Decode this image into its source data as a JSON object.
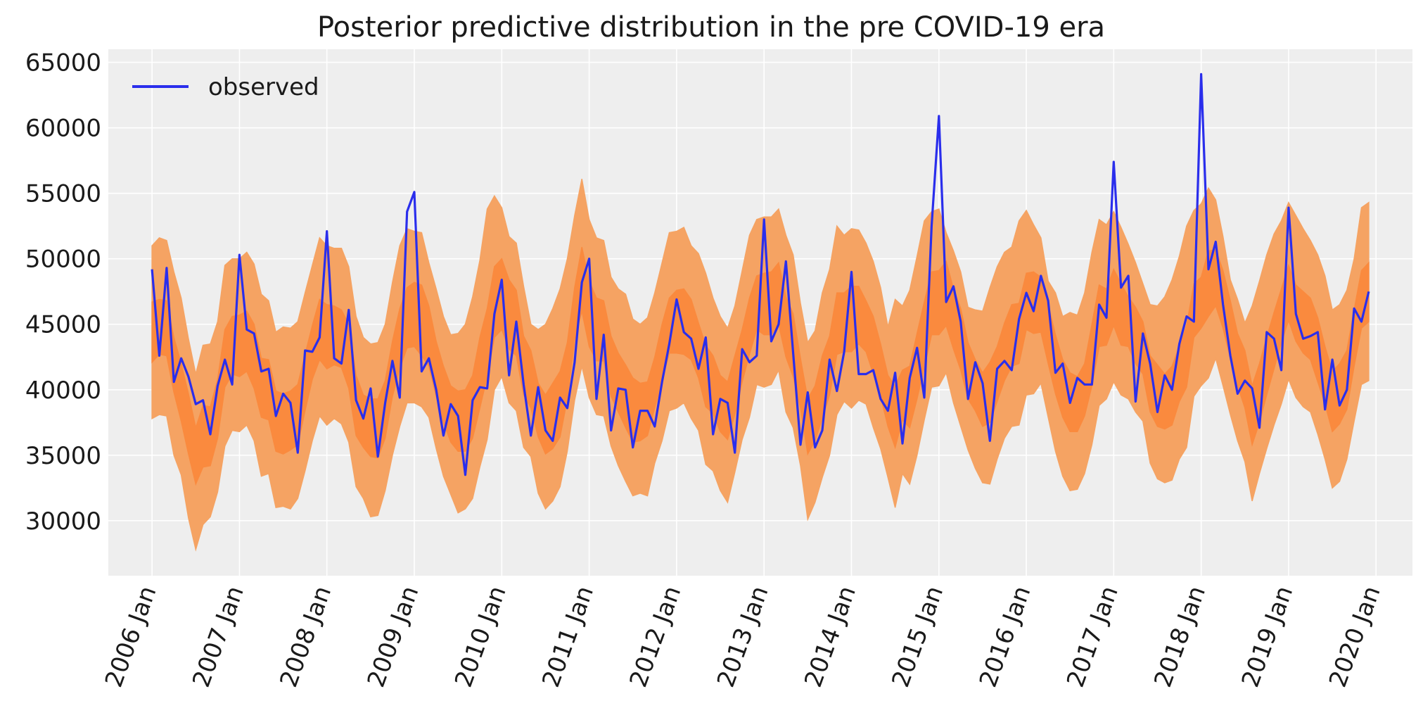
{
  "chart_data": {
    "type": "area",
    "title": "Posterior predictive distribution in the pre COVID-19 era",
    "xlabel": "",
    "ylabel": "",
    "x_tick_labels": [
      "2006 Jan",
      "2007 Jan",
      "2008 Jan",
      "2009 Jan",
      "2010 Jan",
      "2011 Jan",
      "2012 Jan",
      "2013 Jan",
      "2014 Jan",
      "2015 Jan",
      "2016 Jan",
      "2017 Jan",
      "2018 Jan",
      "2019 Jan",
      "2020 Jan"
    ],
    "y_tick_values": [
      30000,
      35000,
      40000,
      45000,
      50000,
      55000,
      60000,
      65000
    ],
    "y_tick_labels": [
      "30000",
      "35000",
      "40000",
      "45000",
      "50000",
      "55000",
      "60000",
      "65000"
    ],
    "xlim": [
      "2005-07",
      "2020-06"
    ],
    "ylim": [
      25800,
      66000
    ],
    "grid": true,
    "legend": {
      "position": "upper-left",
      "entries": [
        "observed"
      ]
    },
    "x": [
      "2006-01",
      "2006-02",
      "2006-03",
      "2006-04",
      "2006-05",
      "2006-06",
      "2006-07",
      "2006-08",
      "2006-09",
      "2006-10",
      "2006-11",
      "2006-12",
      "2007-01",
      "2007-02",
      "2007-03",
      "2007-04",
      "2007-05",
      "2007-06",
      "2007-07",
      "2007-08",
      "2007-09",
      "2007-10",
      "2007-11",
      "2007-12",
      "2008-01",
      "2008-02",
      "2008-03",
      "2008-04",
      "2008-05",
      "2008-06",
      "2008-07",
      "2008-08",
      "2008-09",
      "2008-10",
      "2008-11",
      "2008-12",
      "2009-01",
      "2009-02",
      "2009-03",
      "2009-04",
      "2009-05",
      "2009-06",
      "2009-07",
      "2009-08",
      "2009-09",
      "2009-10",
      "2009-11",
      "2009-12",
      "2010-01",
      "2010-02",
      "2010-03",
      "2010-04",
      "2010-05",
      "2010-06",
      "2010-07",
      "2010-08",
      "2010-09",
      "2010-10",
      "2010-11",
      "2010-12",
      "2011-01",
      "2011-02",
      "2011-03",
      "2011-04",
      "2011-05",
      "2011-06",
      "2011-07",
      "2011-08",
      "2011-09",
      "2011-10",
      "2011-11",
      "2011-12",
      "2012-01",
      "2012-02",
      "2012-03",
      "2012-04",
      "2012-05",
      "2012-06",
      "2012-07",
      "2012-08",
      "2012-09",
      "2012-10",
      "2012-11",
      "2012-12",
      "2013-01",
      "2013-02",
      "2013-03",
      "2013-04",
      "2013-05",
      "2013-06",
      "2013-07",
      "2013-08",
      "2013-09",
      "2013-10",
      "2013-11",
      "2013-12",
      "2014-01",
      "2014-02",
      "2014-03",
      "2014-04",
      "2014-05",
      "2014-06",
      "2014-07",
      "2014-08",
      "2014-09",
      "2014-10",
      "2014-11",
      "2014-12",
      "2015-01",
      "2015-02",
      "2015-03",
      "2015-04",
      "2015-05",
      "2015-06",
      "2015-07",
      "2015-08",
      "2015-09",
      "2015-10",
      "2015-11",
      "2015-12",
      "2016-01",
      "2016-02",
      "2016-03",
      "2016-04",
      "2016-05",
      "2016-06",
      "2016-07",
      "2016-08",
      "2016-09",
      "2016-10",
      "2016-11",
      "2016-12",
      "2017-01",
      "2017-02",
      "2017-03",
      "2017-04",
      "2017-05",
      "2017-06",
      "2017-07",
      "2017-08",
      "2017-09",
      "2017-10",
      "2017-11",
      "2017-12",
      "2018-01",
      "2018-02",
      "2018-03",
      "2018-04",
      "2018-05",
      "2018-06",
      "2018-07",
      "2018-08",
      "2018-09",
      "2018-10",
      "2018-11",
      "2018-12",
      "2019-01",
      "2019-02",
      "2019-03",
      "2019-04",
      "2019-05",
      "2019-06",
      "2019-07",
      "2019-08",
      "2019-09",
      "2019-10",
      "2019-11",
      "2019-12"
    ],
    "series": [
      {
        "name": "observed",
        "color": "#2a2eec",
        "values": [
          49200,
          42600,
          49300,
          40600,
          42400,
          41000,
          38900,
          39200,
          36600,
          40300,
          42300,
          40400,
          50300,
          44600,
          44300,
          41400,
          41600,
          38000,
          39700,
          39000,
          35200,
          43000,
          42900,
          44000,
          52100,
          42400,
          42000,
          46100,
          39200,
          37800,
          40100,
          34900,
          39000,
          42200,
          39400,
          53600,
          55100,
          41400,
          42400,
          40000,
          36500,
          38900,
          38000,
          33500,
          39200,
          40200,
          40100,
          45800,
          48400,
          41100,
          45200,
          40400,
          36500,
          40200,
          36900,
          36100,
          39400,
          38600,
          42100,
          48200,
          50000,
          39300,
          44200,
          36900,
          40100,
          40000,
          35600,
          38400,
          38400,
          37200,
          40600,
          43500,
          46900,
          44400,
          43900,
          41600,
          44000,
          36600,
          39300,
          39000,
          35200,
          43100,
          42100,
          42600,
          53000,
          43700,
          45000,
          49800,
          42800,
          35800,
          39800,
          35600,
          36900,
          42300,
          39900,
          42900,
          49000,
          41200,
          41200,
          41500,
          39300,
          38400,
          41300,
          35900,
          40900,
          43200,
          39400,
          52500,
          60900,
          46700,
          47900,
          45200,
          39300,
          42100,
          40500,
          36100,
          41600,
          42200,
          41500,
          45400,
          47400,
          46000,
          48700,
          46800,
          41300,
          42000,
          39000,
          40900,
          40400,
          40400,
          46500,
          45500,
          57400,
          47800,
          48700,
          39100,
          44300,
          42000,
          38300,
          41100,
          40000,
          43500,
          45600,
          45200,
          64100,
          49200,
          51300,
          46500,
          42600,
          39700,
          40700,
          40100,
          37100,
          44400,
          43900,
          41500,
          53900,
          45800,
          43900,
          44100,
          44400,
          38500,
          42300,
          38800,
          40000,
          46200,
          45200,
          47500
        ]
      }
    ],
    "bands": [
      {
        "name": "outer",
        "color": "#f5a363",
        "lower": [
          37800,
          38100,
          38000,
          35000,
          33500,
          30200,
          27800,
          29700,
          30300,
          32200,
          35700,
          36900,
          36800,
          37300,
          36100,
          33400,
          33600,
          31000,
          31100,
          30900,
          31700,
          33800,
          36100,
          38000,
          37300,
          37800,
          37400,
          36000,
          32600,
          31700,
          30300,
          30400,
          32300,
          35000,
          37200,
          39000,
          39000,
          38700,
          37900,
          35500,
          33400,
          32000,
          30600,
          30900,
          31700,
          34100,
          36200,
          40000,
          41000,
          39000,
          38400,
          35600,
          34900,
          32100,
          30900,
          31500,
          32600,
          35300,
          39200,
          41800,
          39400,
          38100,
          38000,
          35700,
          34200,
          33000,
          31900,
          32100,
          31900,
          34400,
          36100,
          38400,
          38600,
          39000,
          37800,
          36900,
          34300,
          33800,
          32300,
          31400,
          33700,
          36200,
          37900,
          40400,
          40200,
          40400,
          41500,
          38300,
          37100,
          34200,
          30100,
          31400,
          33300,
          35000,
          38100,
          39100,
          38600,
          39200,
          38900,
          37100,
          35500,
          33300,
          31000,
          33600,
          32800,
          35000,
          37700,
          40200,
          40300,
          41300,
          39000,
          37200,
          35400,
          34000,
          32900,
          32800,
          34700,
          36300,
          37200,
          37300,
          39600,
          39700,
          40500,
          37900,
          35300,
          33400,
          32300,
          32400,
          33600,
          35800,
          38800,
          39300,
          40600,
          39600,
          39300,
          38300,
          37600,
          34400,
          33200,
          32900,
          33100,
          34700,
          35600,
          39500,
          40300,
          40900,
          42400,
          40300,
          38100,
          36100,
          34500,
          31500,
          33600,
          35500,
          37300,
          38900,
          40800,
          39400,
          38700,
          38300,
          36600,
          34700,
          32500,
          33000,
          34700,
          37600,
          40400,
          40700
        ],
        "upper": [
          51000,
          51600,
          51400,
          49000,
          47000,
          43900,
          41200,
          43400,
          43500,
          45200,
          49500,
          50000,
          50000,
          50500,
          49600,
          47300,
          46800,
          44400,
          44800,
          44700,
          45200,
          47400,
          49500,
          51600,
          51000,
          50800,
          50800,
          49400,
          45600,
          44000,
          43500,
          43600,
          45000,
          48200,
          51000,
          52300,
          52100,
          52000,
          49700,
          47700,
          45600,
          44200,
          44300,
          45000,
          47100,
          49900,
          53800,
          54800,
          53900,
          51700,
          51200,
          47900,
          45000,
          44600,
          45000,
          46200,
          47700,
          50000,
          53300,
          56100,
          53000,
          51600,
          51400,
          48600,
          47700,
          47300,
          45400,
          45000,
          45500,
          47400,
          49700,
          52000,
          52100,
          52400,
          51000,
          50400,
          48900,
          47000,
          45600,
          44700,
          46400,
          49100,
          51800,
          53000,
          53200,
          53200,
          53800,
          51800,
          50300,
          46600,
          43600,
          44500,
          47400,
          49200,
          52500,
          51800,
          52300,
          52200,
          51200,
          49800,
          47800,
          44800,
          46900,
          46400,
          47600,
          50200,
          52900,
          53600,
          53800,
          52000,
          50600,
          49000,
          46300,
          46100,
          46000,
          47800,
          49400,
          50500,
          50900,
          52900,
          53700,
          52600,
          51600,
          48300,
          47400,
          45600,
          45900,
          45700,
          47400,
          50500,
          53000,
          52600,
          53600,
          52400,
          51100,
          49700,
          48100,
          46500,
          46400,
          47100,
          48400,
          50200,
          52500,
          53700,
          54200,
          55400,
          54500,
          51700,
          48400,
          46900,
          45100,
          46400,
          48300,
          50300,
          51900,
          52900,
          54300,
          53300,
          52300,
          51400,
          50300,
          48700,
          46100,
          46500,
          47600,
          50000,
          53900,
          54300
        ]
      },
      {
        "name": "inner",
        "color": "#fa8a3e",
        "lower": [
          42100,
          42700,
          42600,
          39800,
          37600,
          35100,
          32800,
          34100,
          34200,
          36300,
          40200,
          41200,
          41000,
          41400,
          40100,
          37900,
          37700,
          35300,
          35100,
          35400,
          35800,
          38400,
          40800,
          42300,
          41600,
          41900,
          41700,
          40100,
          36500,
          35600,
          34900,
          34800,
          36300,
          39500,
          41600,
          43200,
          43300,
          42600,
          41800,
          39500,
          37500,
          36000,
          35300,
          35300,
          36300,
          38600,
          41000,
          44000,
          44600,
          43100,
          42600,
          39600,
          38600,
          36400,
          35100,
          35500,
          36400,
          39300,
          43800,
          46000,
          43300,
          42200,
          42200,
          39500,
          38300,
          37100,
          36000,
          36100,
          36500,
          38600,
          40700,
          42800,
          42800,
          42700,
          42300,
          40900,
          38700,
          38200,
          36800,
          36200,
          38100,
          40600,
          42700,
          44600,
          44200,
          44200,
          45000,
          42500,
          41000,
          38600,
          35100,
          36100,
          37800,
          39600,
          42700,
          42900,
          42900,
          43500,
          42900,
          41200,
          39500,
          37200,
          35600,
          37700,
          37100,
          39300,
          41700,
          44200,
          44200,
          44900,
          43100,
          41500,
          39300,
          38400,
          37200,
          37500,
          39100,
          40700,
          41800,
          42000,
          44600,
          44300,
          44400,
          42000,
          39700,
          37900,
          36800,
          36800,
          38000,
          40300,
          43300,
          43400,
          44900,
          43400,
          43300,
          42000,
          41200,
          38300,
          37200,
          37000,
          37300,
          39100,
          40200,
          44000,
          44700,
          45600,
          46400,
          44700,
          42400,
          40300,
          38600,
          35800,
          37500,
          39600,
          41600,
          43600,
          45300,
          43700,
          42800,
          42300,
          40600,
          38900,
          36800,
          37400,
          38500,
          41800,
          44700,
          45200
        ],
        "upper": [
          46700,
          46900,
          46800,
          44000,
          42000,
          39700,
          37100,
          38800,
          38700,
          40800,
          44600,
          45600,
          45700,
          46000,
          45000,
          42400,
          42300,
          39900,
          39700,
          39900,
          40400,
          42700,
          44900,
          46900,
          46500,
          46400,
          46100,
          45000,
          41100,
          39600,
          39300,
          39300,
          40700,
          43700,
          46200,
          47800,
          48200,
          48000,
          46400,
          43700,
          41800,
          40300,
          39900,
          40000,
          41100,
          44000,
          46200,
          49400,
          50000,
          48400,
          47600,
          44100,
          43000,
          40500,
          39600,
          40500,
          41400,
          43600,
          47800,
          50900,
          48300,
          47000,
          46800,
          44100,
          42800,
          41900,
          40900,
          40500,
          40600,
          42500,
          45000,
          47000,
          47600,
          47700,
          46900,
          45100,
          43400,
          42600,
          41100,
          40600,
          42600,
          44600,
          47000,
          48700,
          48900,
          49000,
          49700,
          47100,
          45800,
          42400,
          39300,
          40300,
          42600,
          44100,
          47400,
          47400,
          47900,
          47900,
          46800,
          45600,
          43500,
          41100,
          40300,
          41500,
          41800,
          44300,
          46700,
          49000,
          49100,
          49800,
          47700,
          46200,
          43600,
          42300,
          41300,
          42100,
          43300,
          45100,
          46500,
          46600,
          48900,
          49000,
          48600,
          46500,
          44200,
          42300,
          41300,
          41000,
          42000,
          45000,
          48000,
          47700,
          49200,
          48100,
          47100,
          46300,
          45200,
          42600,
          41900,
          41200,
          41800,
          43300,
          44900,
          48100,
          48600,
          50600,
          50700,
          49100,
          46800,
          44300,
          43000,
          40300,
          42000,
          44000,
          45900,
          47700,
          49500,
          48000,
          47500,
          47000,
          45500,
          43300,
          41400,
          42000,
          43000,
          46100,
          49100,
          49700
        ]
      }
    ]
  }
}
